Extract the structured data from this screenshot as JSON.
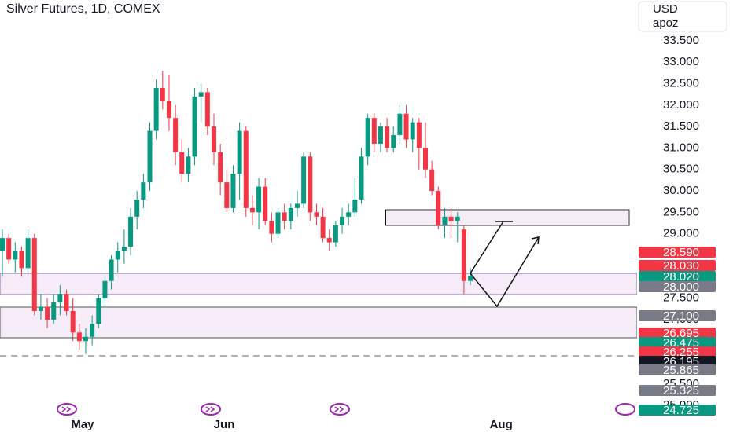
{
  "chart_data": {
    "type": "candlestick",
    "title": "Silver Futures, 1D, COMEX",
    "currency": "USD",
    "scale_label": "apoz",
    "up_color": "#089981",
    "down_color": "#f23645",
    "x": [
      0,
      1,
      2,
      3,
      4,
      5,
      6,
      7,
      8,
      9,
      10,
      11,
      12,
      13,
      14,
      15,
      16,
      17,
      18,
      19,
      20,
      21,
      22,
      23,
      24,
      25,
      26,
      27,
      28,
      29,
      30,
      31,
      32,
      33,
      34,
      35,
      36,
      37,
      38,
      39,
      40,
      41,
      42,
      43,
      44,
      45,
      46,
      47,
      48,
      49,
      50,
      51,
      52,
      53,
      54,
      55,
      56,
      57,
      58,
      59,
      60,
      61,
      62,
      63,
      64,
      65,
      66,
      67,
      68,
      69,
      70,
      71,
      72,
      73
    ],
    "open": [
      28.6,
      28.9,
      28.4,
      28.6,
      28.2,
      28.9,
      27.2,
      27.3,
      27.0,
      27.4,
      27.6,
      27.2,
      26.7,
      26.5,
      26.6,
      26.9,
      27.5,
      27.9,
      28.4,
      28.6,
      28.7,
      29.4,
      29.8,
      30.2,
      31.4,
      32.4,
      32.1,
      31.7,
      30.9,
      30.4,
      30.8,
      32.2,
      32.3,
      31.5,
      30.9,
      30.2,
      29.6,
      30.4,
      31.4,
      29.6,
      29.5,
      30.1,
      29.3,
      29.0,
      29.5,
      29.3,
      29.6,
      29.7,
      30.8,
      29.5,
      29.4,
      28.9,
      28.8,
      29.2,
      29.4,
      29.5,
      29.8,
      30.8,
      31.7,
      31.1,
      31.5,
      31.0,
      31.3,
      31.8,
      31.2,
      31.6,
      31.0,
      30.5,
      30.0,
      29.2,
      29.4,
      29.3,
      29.1,
      27.9
    ],
    "high": [
      29.1,
      29.0,
      28.8,
      28.7,
      29.1,
      29.0,
      27.6,
      27.5,
      27.6,
      27.8,
      27.7,
      27.5,
      26.9,
      26.8,
      27.1,
      27.6,
      28.0,
      28.5,
      28.8,
      29.1,
      29.6,
      30.0,
      30.4,
      31.6,
      32.6,
      32.8,
      32.7,
      32.0,
      31.2,
      31.0,
      32.4,
      32.5,
      32.4,
      31.8,
      31.1,
      30.5,
      30.6,
      31.6,
      31.5,
      29.9,
      30.3,
      30.3,
      29.5,
      29.6,
      29.7,
      29.7,
      30.0,
      30.9,
      30.9,
      29.7,
      29.6,
      29.1,
      29.3,
      29.6,
      29.7,
      30.3,
      31.0,
      31.8,
      31.8,
      31.6,
      31.7,
      31.5,
      32.0,
      32.0,
      31.7,
      31.7,
      31.6,
      30.7,
      30.1,
      29.6,
      29.6,
      29.5,
      29.2,
      28.2
    ],
    "low": [
      28.0,
      28.3,
      28.1,
      28.0,
      28.1,
      27.1,
      27.0,
      26.8,
      26.9,
      27.1,
      27.1,
      26.5,
      26.3,
      26.2,
      26.4,
      26.8,
      27.3,
      27.7,
      28.1,
      28.3,
      28.5,
      29.1,
      29.6,
      30.0,
      31.2,
      31.9,
      31.4,
      30.6,
      30.2,
      30.2,
      30.6,
      31.6,
      31.3,
      30.6,
      29.9,
      29.5,
      29.5,
      29.8,
      29.4,
      29.2,
      29.1,
      29.2,
      28.8,
      28.9,
      29.1,
      29.1,
      29.4,
      29.6,
      29.3,
      29.2,
      28.8,
      28.6,
      28.7,
      29.0,
      29.2,
      29.4,
      29.7,
      30.6,
      30.9,
      30.9,
      30.9,
      30.9,
      31.1,
      31.0,
      30.9,
      30.5,
      30.3,
      29.9,
      29.1,
      28.9,
      28.9,
      28.8,
      27.6,
      27.8
    ],
    "close": [
      28.9,
      28.4,
      28.6,
      28.2,
      28.9,
      27.2,
      27.3,
      27.0,
      27.4,
      27.6,
      27.2,
      26.7,
      26.5,
      26.6,
      26.9,
      27.5,
      27.9,
      28.4,
      28.6,
      28.7,
      29.4,
      29.8,
      30.2,
      31.4,
      32.4,
      32.1,
      31.7,
      30.9,
      30.4,
      30.8,
      32.2,
      32.3,
      31.5,
      30.9,
      30.2,
      29.6,
      30.4,
      31.4,
      29.6,
      29.5,
      30.1,
      29.3,
      29.0,
      29.5,
      29.3,
      29.6,
      29.7,
      30.8,
      29.5,
      29.4,
      28.9,
      28.8,
      29.2,
      29.4,
      29.5,
      29.8,
      30.8,
      31.7,
      31.1,
      31.5,
      31.0,
      31.3,
      31.8,
      31.2,
      31.6,
      31.0,
      30.5,
      30.0,
      29.2,
      29.4,
      29.3,
      29.4,
      27.9,
      28.02
    ],
    "xlim": [
      -0.37,
      99.0
    ],
    "ylim": [
      24.38,
      34.45
    ],
    "xticks": [
      {
        "value": 12.5,
        "label": "May"
      },
      {
        "value": 34.6,
        "label": "Jun"
      },
      {
        "value": 77.8,
        "label": "Aug"
      }
    ],
    "yticks": [
      {
        "value": 33.5,
        "label": "33.500"
      },
      {
        "value": 33,
        "label": "33.000"
      },
      {
        "value": 32.5,
        "label": "32.500"
      },
      {
        "value": 32,
        "label": "32.000"
      },
      {
        "value": 31.5,
        "label": "31.500"
      },
      {
        "value": 31,
        "label": "31.000"
      },
      {
        "value": 30.5,
        "label": "30.500"
      },
      {
        "value": 30,
        "label": "30.000"
      },
      {
        "value": 29.5,
        "label": "29.500"
      },
      {
        "value": 29,
        "label": "29.000"
      },
      {
        "value": 27.5,
        "label": "27.500"
      },
      {
        "value": 27,
        "label": "27.000"
      },
      {
        "value": 25.5,
        "label": "25.500"
      },
      {
        "value": 25,
        "label": "25.000"
      }
    ],
    "price_tags": [
      {
        "value": 28.59,
        "label": "28.590",
        "color": "#f23645"
      },
      {
        "value": 28.03,
        "label": "28.030",
        "color": "#f23645"
      },
      {
        "value": 28.02,
        "label": "28.020",
        "color": "#089981"
      },
      {
        "value": 28.0,
        "label": "28.000",
        "color": "#787b86"
      },
      {
        "value": 27.1,
        "label": "27.100",
        "color": "#787b86"
      },
      {
        "value": 26.695,
        "label": "26.695",
        "color": "#f23645"
      },
      {
        "value": 26.475,
        "label": "26.475",
        "color": "#089981"
      },
      {
        "value": 26.255,
        "label": "26.255",
        "color": "#f23645"
      },
      {
        "value": 26.195,
        "label": "26.195",
        "color": "#131722"
      },
      {
        "value": 25.865,
        "label": "25.865",
        "color": "#787b86"
      },
      {
        "value": 25.325,
        "label": "25.325",
        "color": "#787b86"
      },
      {
        "value": 24.725,
        "label": "24.725",
        "color": "#089981"
      }
    ]
  }
}
